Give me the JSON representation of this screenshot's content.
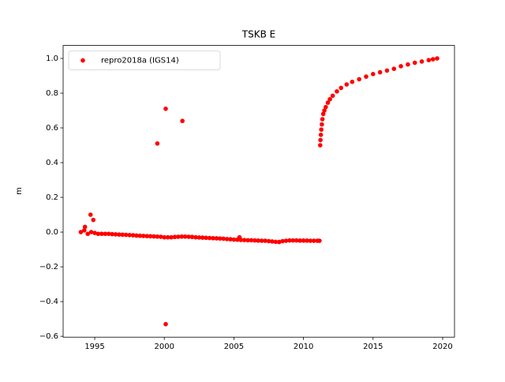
{
  "chart_data": {
    "type": "scatter",
    "title": "TSKB E",
    "y_label": "m",
    "x": [
      1994.0,
      1994.25,
      1994.5,
      1994.75,
      1995.0,
      1995.25,
      1995.5,
      1995.75,
      1996.0,
      1996.25,
      1996.5,
      1996.75,
      1997.0,
      1997.25,
      1997.5,
      1997.75,
      1998.0,
      1998.25,
      1998.5,
      1998.75,
      1999.0,
      1999.25,
      1999.5,
      1999.75,
      2000.0,
      2000.25,
      2000.5,
      2000.75,
      2001.0,
      2001.25,
      2001.5,
      2001.75,
      2002.0,
      2002.25,
      2002.5,
      2002.75,
      2003.0,
      2003.25,
      2003.5,
      2003.75,
      2004.0,
      2004.25,
      2004.5,
      2004.75,
      2005.0,
      2005.25,
      2005.5,
      2005.75,
      2006.0,
      2006.25,
      2006.5,
      2006.75,
      2007.0,
      2007.25,
      2007.5,
      2007.75,
      2008.0,
      2008.25,
      2008.5,
      2008.75,
      2009.0,
      2009.25,
      2009.5,
      2009.75,
      2010.0,
      2010.25,
      2010.5,
      2010.75,
      2011.0,
      2011.15,
      1994.3,
      1994.7,
      1994.9,
      1999.5,
      2000.1,
      2001.3,
      2000.1,
      2005.4,
      2011.2,
      2011.22,
      2011.25,
      2011.28,
      2011.32,
      2011.36,
      2011.42,
      2011.5,
      2011.6,
      2011.75,
      2011.9,
      2012.1,
      2012.4,
      2012.7,
      2013.1,
      2013.5,
      2014.0,
      2014.5,
      2015.0,
      2015.5,
      2016.0,
      2016.5,
      2017.0,
      2017.5,
      2018.0,
      2018.5,
      2019.0,
      2019.3,
      2019.6
    ],
    "series": [
      {
        "name": "repro2018a (IGS14)",
        "color": "#ff0000",
        "values": [
          0.0,
          0.01,
          -0.01,
          0.0,
          -0.005,
          -0.01,
          -0.01,
          -0.01,
          -0.01,
          -0.012,
          -0.013,
          -0.014,
          -0.015,
          -0.016,
          -0.017,
          -0.018,
          -0.02,
          -0.021,
          -0.022,
          -0.023,
          -0.024,
          -0.025,
          -0.026,
          -0.027,
          -0.03,
          -0.03,
          -0.03,
          -0.028,
          -0.027,
          -0.026,
          -0.026,
          -0.027,
          -0.028,
          -0.03,
          -0.031,
          -0.032,
          -0.033,
          -0.034,
          -0.035,
          -0.036,
          -0.037,
          -0.038,
          -0.04,
          -0.041,
          -0.043,
          -0.044,
          -0.045,
          -0.046,
          -0.047,
          -0.047,
          -0.048,
          -0.049,
          -0.05,
          -0.05,
          -0.052,
          -0.054,
          -0.056,
          -0.057,
          -0.052,
          -0.05,
          -0.048,
          -0.048,
          -0.048,
          -0.049,
          -0.049,
          -0.049,
          -0.05,
          -0.05,
          -0.05,
          -0.05,
          0.03,
          0.1,
          0.07,
          0.51,
          0.71,
          0.64,
          -0.53,
          -0.03,
          0.5,
          0.53,
          0.56,
          0.59,
          0.62,
          0.65,
          0.68,
          0.7,
          0.72,
          0.745,
          0.765,
          0.785,
          0.81,
          0.83,
          0.85,
          0.865,
          0.88,
          0.895,
          0.91,
          0.92,
          0.93,
          0.94,
          0.955,
          0.965,
          0.975,
          0.982,
          0.99,
          0.995,
          1.0
        ]
      }
    ],
    "xlim": [
      1992.73,
      2020.85
    ],
    "ylim": [
      -0.605,
      1.0745
    ],
    "xticks": [
      1995,
      2000,
      2005,
      2010,
      2015,
      2020
    ],
    "yticks": [
      {
        "value": -0.6,
        "label": "−0.6"
      },
      {
        "value": -0.4,
        "label": "−0.4"
      },
      {
        "value": -0.2,
        "label": "−0.2"
      },
      {
        "value": 0.0,
        "label": "0.0"
      },
      0.2,
      0.4,
      0.6,
      0.8,
      {
        "value": 1.0,
        "label": "1.0"
      }
    ],
    "legend": "upper left"
  }
}
